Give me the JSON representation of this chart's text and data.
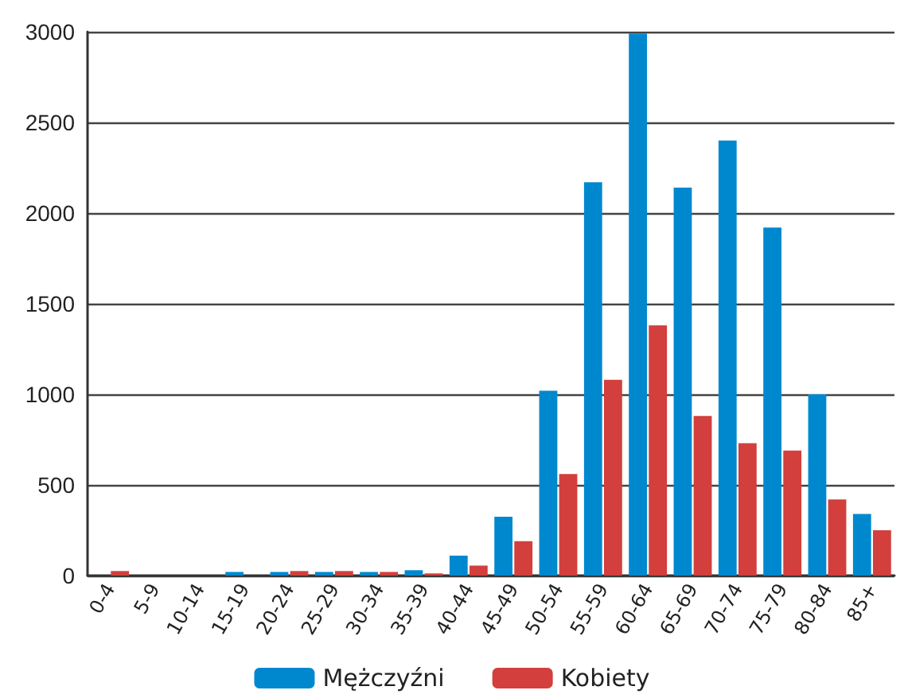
{
  "chart_data": {
    "type": "bar",
    "categories": [
      "0-4",
      "5-9",
      "10-14",
      "15-19",
      "20-24",
      "25-29",
      "30-34",
      "35-39",
      "40-44",
      "45-49",
      "50-54",
      "55-59",
      "60-64",
      "65-69",
      "70-74",
      "75-79",
      "80-84",
      "85+"
    ],
    "series": [
      {
        "name": "Mężczyźni",
        "color": "#0088cf",
        "values": [
          0,
          0,
          0,
          20,
          20,
          20,
          20,
          30,
          110,
          325,
          1020,
          2170,
          2990,
          2140,
          2400,
          1920,
          1000,
          340
        ]
      },
      {
        "name": "Kobiety",
        "color": "#d23f3c",
        "values": [
          25,
          0,
          0,
          0,
          25,
          25,
          20,
          12,
          55,
          190,
          560,
          1080,
          1380,
          880,
          730,
          690,
          420,
          250
        ]
      }
    ],
    "ylim": [
      0,
      3000
    ],
    "yticks": [
      0,
      500,
      1000,
      1500,
      2000,
      2500,
      3000
    ],
    "grid": "y",
    "legend": "bottom"
  }
}
